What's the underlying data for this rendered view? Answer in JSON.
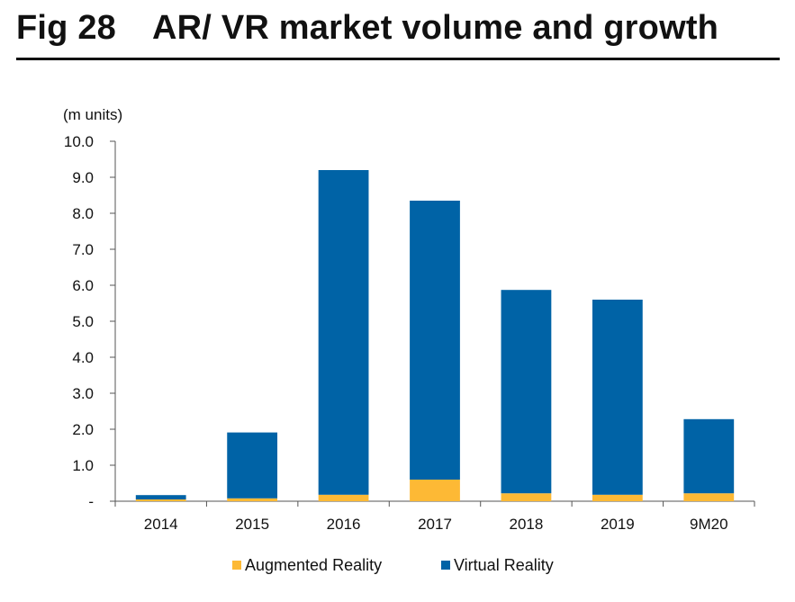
{
  "figure": {
    "number": "Fig 28",
    "title": "AR/ VR market volume and growth"
  },
  "chart_data": {
    "type": "bar",
    "stacked": true,
    "title": "AR/ VR market volume and growth",
    "ylabel": "(m units)",
    "xlabel": "",
    "ylim": [
      0,
      10
    ],
    "y_ticks": [
      0,
      1,
      2,
      3,
      4,
      5,
      6,
      7,
      8,
      9,
      10
    ],
    "y_tick_labels": [
      "-",
      "1.0",
      "2.0",
      "3.0",
      "4.0",
      "5.0",
      "6.0",
      "7.0",
      "8.0",
      "9.0",
      "10.0"
    ],
    "categories": [
      "2014",
      "2015",
      "2016",
      "2017",
      "2018",
      "2019",
      "9M20"
    ],
    "series": [
      {
        "name": "Augmented Reality",
        "color": "#FDB935",
        "values": [
          0.05,
          0.08,
          0.18,
          0.6,
          0.22,
          0.18,
          0.22
        ]
      },
      {
        "name": "Virtual Reality",
        "color": "#0063A6",
        "values": [
          0.12,
          1.83,
          9.02,
          7.75,
          5.65,
          5.42,
          2.06
        ]
      }
    ],
    "grid": false,
    "legend": "bottom-center"
  }
}
